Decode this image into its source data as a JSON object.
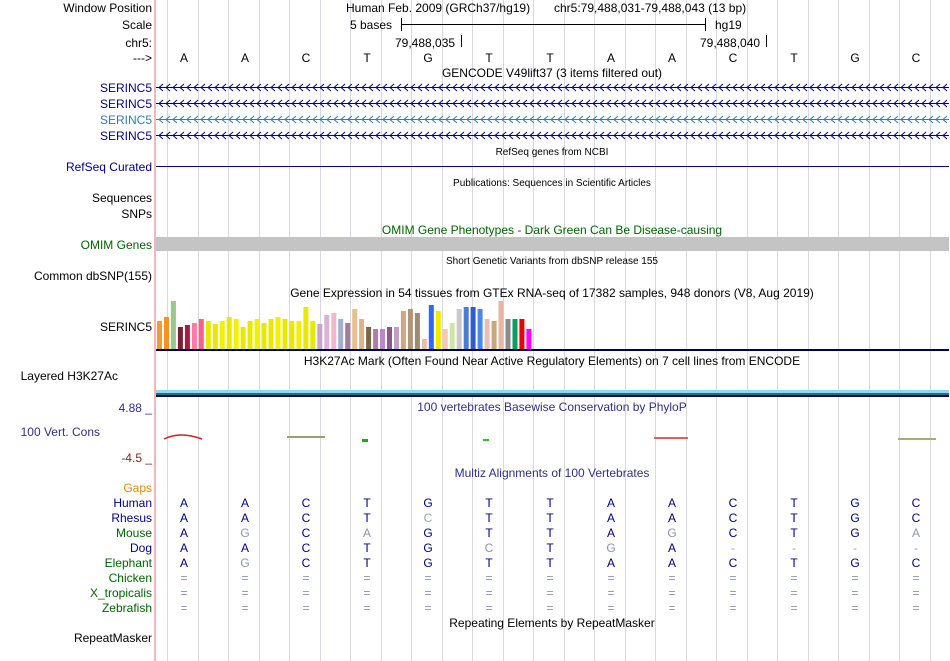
{
  "labels": {
    "window_position": "Window Position",
    "scale": "Scale",
    "chr": "chr5:",
    "arrow": "--->",
    "serinc5_1": "SERINC5",
    "serinc5_2": "SERINC5",
    "serinc5_3": "SERINC5",
    "serinc5_4": "SERINC5",
    "refseq": "RefSeq Curated",
    "sequences": "Sequences",
    "snps": "SNPs",
    "omim": "OMIM Genes",
    "dbsnp": "Common dbSNP(155)",
    "gtex_gene": "SERINC5",
    "h3k27ac": "Layered H3K27Ac",
    "scale_max": "4.88 _",
    "vert_cons": "100 Vert. Cons",
    "scale_min": "-4.5 _",
    "gaps": "Gaps",
    "repeatmasker": "RepeatMasker"
  },
  "header": {
    "assembly": "Human Feb. 2009 (GRCh37/hg19)",
    "position": "chr5:79,488,031-79,488,043 (13 bp)",
    "scale_text": "5 bases",
    "db": "hg19",
    "coord_left": "79,488,035",
    "coord_right": "79,488,040"
  },
  "bases": [
    "A",
    "A",
    "C",
    "T",
    "G",
    "T",
    "T",
    "A",
    "A",
    "C",
    "T",
    "G",
    "C"
  ],
  "track_titles": {
    "gencode": "GENCODE V49lift37 (3 items filtered out)",
    "refseq": "RefSeq genes from NCBI",
    "publications": "Publications: Sequences in Scientific Articles",
    "omim": "OMIM Gene Phenotypes - Dark Green Can Be Disease-causing",
    "dbsnp": "Short Genetic Variants from dbSNP release 155",
    "gtex": "Gene Expression in 54 tissues from GTEx RNA-seq of 17382 samples, 948 donors (V8, Aug 2019)",
    "h3k27ac": "H3K27Ac Mark (Often Found Near Active Regulatory Elements) on 7 cell lines from ENCODE",
    "phylop": "100 vertebrates Basewise Conservation by PhyloP",
    "multiz": "Multiz Alignments of 100 Vertebrates",
    "repeatmasker": "Repeating Elements by RepeatMasker"
  },
  "colors": {
    "navy": "#000080",
    "teal": "#2f7fa6",
    "omim_green": "#006400",
    "gaps_orange": "#e08a00",
    "species_green": "#006400",
    "phylop_blue": "#303080",
    "phylop_red": "#7f1f1f"
  },
  "gtex_colors": [
    "#f39a3c",
    "#f7941d",
    "#9ac78e",
    "#7a1f3a",
    "#b2163e",
    "#ff7aa6",
    "#ff5e8c",
    "#e8e800",
    "#e8e800",
    "#f0f000",
    "#e8e800",
    "#f2f200",
    "#e8e800",
    "#e8e800",
    "#f0f000",
    "#e8e800",
    "#e8e800",
    "#f2f200",
    "#e8e800",
    "#e8e800",
    "#f0f000",
    "#e8e800",
    "#e8e800",
    "#c4a7c9",
    "#d9b3d1",
    "#f0b8c8",
    "#9fb0d4",
    "#a27d9a",
    "#e7c08c",
    "#d9b48f",
    "#7b6648",
    "#a980a9",
    "#bc86cf",
    "#8a5a8a",
    "#c0a0c0",
    "#c9a984",
    "#b39377",
    "#9d8a70",
    "#e6c0a8",
    "#3366ff",
    "#f4e800",
    "#f6c7b6",
    "#cfe6a3",
    "#c9c9c9",
    "#4a7bd6",
    "#2e5fc8",
    "#4a8ae6",
    "#e8bfb6",
    "#cba57d",
    "#e8b7a2",
    "#8c8c8c",
    "#0b9f5f",
    "#ee0000",
    "#ff00ff"
  ],
  "gtex_heights": [
    28,
    32,
    48,
    22,
    24,
    26,
    30,
    28,
    25,
    28,
    32,
    30,
    22,
    28,
    30,
    26,
    30,
    32,
    30,
    28,
    28,
    42,
    28,
    25,
    34,
    36,
    30,
    26,
    40,
    30,
    22,
    20,
    20,
    22,
    22,
    38,
    40,
    36,
    10,
    44,
    38,
    20,
    26,
    40,
    42,
    42,
    40,
    30,
    28,
    48,
    30,
    30,
    30,
    20
  ],
  "species": [
    {
      "name": "Human",
      "color": "#000080",
      "bases": [
        "A",
        "A",
        "C",
        "T",
        "G",
        "T",
        "T",
        "A",
        "A",
        "C",
        "T",
        "G",
        "C"
      ],
      "bcol": [
        "#000080",
        "#000080",
        "#000080",
        "#000080",
        "#000080",
        "#000080",
        "#000080",
        "#000080",
        "#000080",
        "#000080",
        "#000080",
        "#000080",
        "#000080"
      ]
    },
    {
      "name": "Rhesus",
      "color": "#000080",
      "bases": [
        "A",
        "A",
        "C",
        "T",
        "C",
        "T",
        "T",
        "A",
        "A",
        "C",
        "T",
        "G",
        "C"
      ],
      "bcol": [
        "#000080",
        "#000080",
        "#000080",
        "#000080",
        "#9aa0b8",
        "#000080",
        "#000080",
        "#000080",
        "#000080",
        "#000080",
        "#000080",
        "#000080",
        "#000080"
      ]
    },
    {
      "name": "Mouse",
      "color": "#006400",
      "bases": [
        "A",
        "G",
        "C",
        "A",
        "G",
        "T",
        "T",
        "A",
        "G",
        "C",
        "T",
        "G",
        "A"
      ],
      "bcol": [
        "#000080",
        "#8a93b3",
        "#000080",
        "#8a93b3",
        "#000080",
        "#000080",
        "#000080",
        "#000080",
        "#8a93b3",
        "#000080",
        "#000080",
        "#000080",
        "#8a93b3"
      ]
    },
    {
      "name": "Dog",
      "color": "#000080",
      "bases": [
        "A",
        "A",
        "C",
        "T",
        "G",
        "C",
        "T",
        "G",
        "A",
        "-",
        "-",
        "-",
        "-"
      ],
      "bcol": [
        "#000080",
        "#000080",
        "#000080",
        "#000080",
        "#000080",
        "#8a93b3",
        "#000080",
        "#8a93b3",
        "#000080",
        "#9aa0b8",
        "#9aa0b8",
        "#9aa0b8",
        "#9aa0b8"
      ]
    },
    {
      "name": "Elephant",
      "color": "#006400",
      "bases": [
        "A",
        "G",
        "C",
        "T",
        "G",
        "T",
        "T",
        "A",
        "A",
        "C",
        "T",
        "G",
        "C"
      ],
      "bcol": [
        "#000080",
        "#8a93b3",
        "#000080",
        "#000080",
        "#000080",
        "#000080",
        "#000080",
        "#000080",
        "#000080",
        "#000080",
        "#000080",
        "#000080",
        "#000080"
      ]
    },
    {
      "name": "Chicken",
      "color": "#006400",
      "bases": [
        "=",
        "=",
        "=",
        "=",
        "=",
        "=",
        "=",
        "=",
        "=",
        "=",
        "=",
        "=",
        "="
      ],
      "bcol": [
        "#8a93b3",
        "#8a93b3",
        "#8a93b3",
        "#8a93b3",
        "#8a93b3",
        "#8a93b3",
        "#8a93b3",
        "#8a93b3",
        "#8a93b3",
        "#8a93b3",
        "#8a93b3",
        "#8a93b3",
        "#8a93b3"
      ]
    },
    {
      "name": "X_tropicalis",
      "color": "#006400",
      "bases": [
        "=",
        "=",
        "=",
        "=",
        "=",
        "=",
        "=",
        "=",
        "=",
        "=",
        "=",
        "=",
        "="
      ],
      "bcol": [
        "#8a93b3",
        "#8a93b3",
        "#8a93b3",
        "#8a93b3",
        "#8a93b3",
        "#8a93b3",
        "#8a93b3",
        "#8a93b3",
        "#8a93b3",
        "#8a93b3",
        "#8a93b3",
        "#8a93b3",
        "#8a93b3"
      ]
    },
    {
      "name": "Zebrafish",
      "color": "#006400",
      "bases": [
        "=",
        "=",
        "=",
        "=",
        "=",
        "=",
        "=",
        "=",
        "=",
        "=",
        "=",
        "=",
        "="
      ],
      "bcol": [
        "#8a93b3",
        "#8a93b3",
        "#8a93b3",
        "#8a93b3",
        "#8a93b3",
        "#8a93b3",
        "#8a93b3",
        "#8a93b3",
        "#8a93b3",
        "#8a93b3",
        "#8a93b3",
        "#8a93b3",
        "#8a93b3"
      ]
    }
  ]
}
